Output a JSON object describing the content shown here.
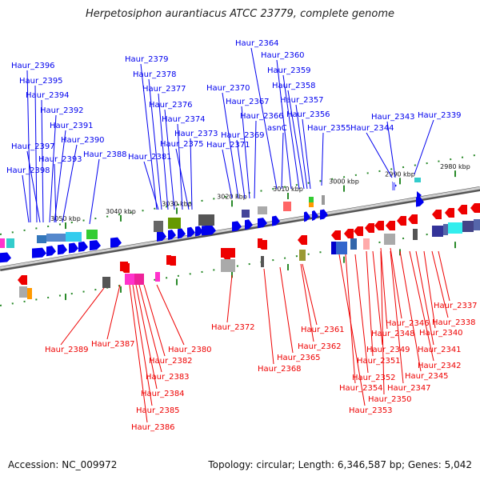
{
  "title": "Herpetosiphon aurantiacus ATCC 23779, complete genome",
  "footer": {
    "accession": "Accession: NC_009972",
    "stats": "Topology: circular; Length: 6,346,587 bp; Genes: 5,042"
  },
  "colors": {
    "forward": "#0000ee",
    "reverse": "#ee0000",
    "backbone": "#888888",
    "tick": "#2a8a2a"
  },
  "scale_labels": [
    "3050 kbp",
    "3040 kbp",
    "3030 kbp",
    "3020 kbp",
    "3010 kbp",
    "3000 kbp",
    "2990 kbp",
    "2980 kbp"
  ],
  "forward_genes": [
    "Haur_2396",
    "Haur_2395",
    "Haur_2394",
    "Haur_2392",
    "Haur_2391",
    "Haur_2390",
    "Haur_2397",
    "Haur_2393",
    "Haur_2398",
    "Haur_2388",
    "Haur_2379",
    "Haur_2378",
    "Haur_2377",
    "Haur_2376",
    "Haur_2374",
    "Haur_2373",
    "Haur_2375",
    "Haur_2381",
    "Haur_2370",
    "Haur_2367",
    "Haur_2366",
    "Haur_2369",
    "Haur_2371",
    "Haur_2364",
    "Haur_2360",
    "Haur_2359",
    "Haur_2358",
    "Haur_2357",
    "Haur_2356",
    "asnC",
    "Haur_2355",
    "Haur_2343",
    "Haur_2344",
    "Haur_2339"
  ],
  "reverse_genes": [
    "Haur_2389",
    "Haur_2387",
    "Haur_2380",
    "Haur_2382",
    "Haur_2383",
    "Haur_2384",
    "Haur_2385",
    "Haur_2386",
    "Haur_2372",
    "Haur_2368",
    "Haur_2365",
    "Haur_2362",
    "Haur_2361",
    "Haur_2337",
    "Haur_2338",
    "Haur_2346",
    "Haur_2348",
    "Haur_2340",
    "Haur_2349",
    "Haur_2341",
    "Haur_2351",
    "Haur_2342",
    "Haur_2352",
    "Haur_2345",
    "Haur_2354",
    "Haur_2347",
    "Haur_2350",
    "Haur_2353"
  ]
}
